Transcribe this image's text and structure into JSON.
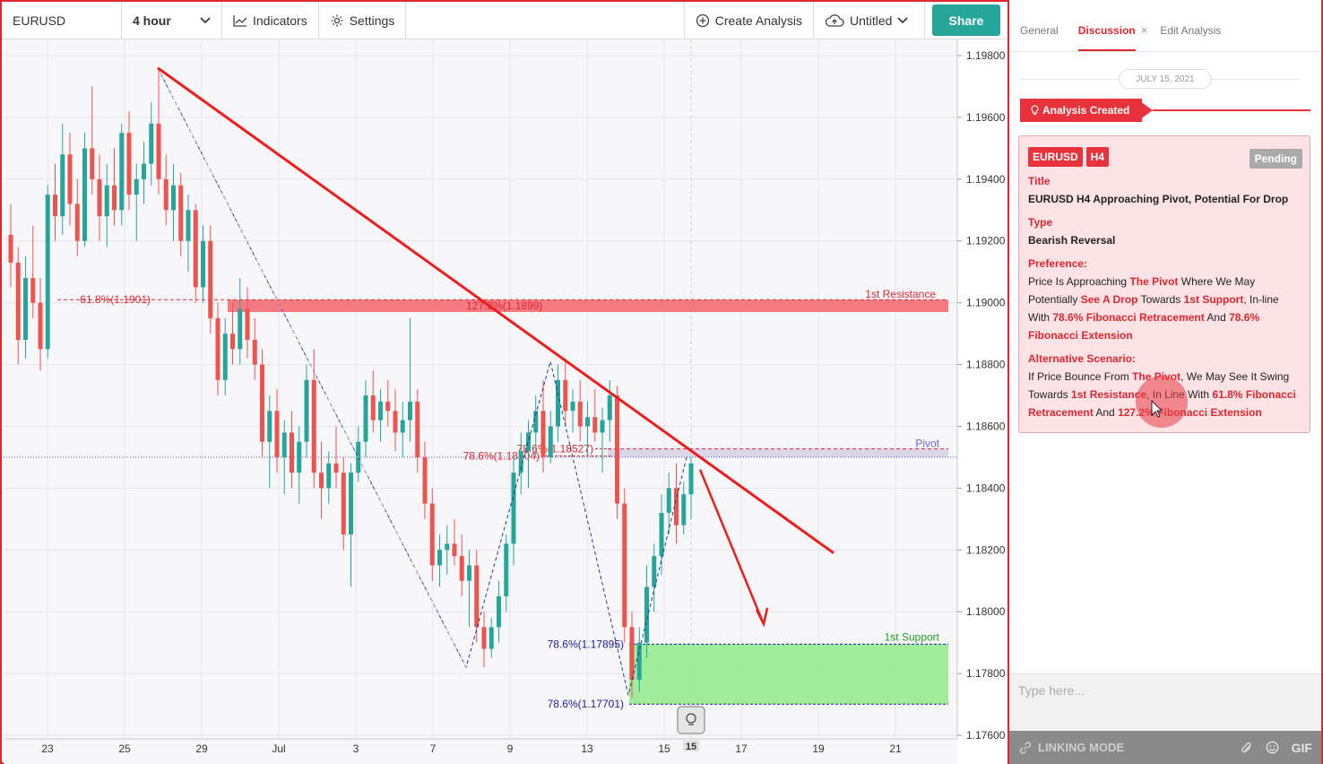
{
  "toolbar": {
    "symbol": "EURUSD",
    "timeframe": "4 hour",
    "indicators_label": "Indicators",
    "settings_label": "Settings",
    "create_analysis_label": "Create Analysis",
    "layout_name": "Untitled",
    "share_label": "Share"
  },
  "chart_data": {
    "type": "candlestick",
    "symbol": "EURUSD",
    "timeframe": "H4",
    "ylim": [
      1.176,
      1.198
    ],
    "y_ticks": [
      "1.19800",
      "1.19600",
      "1.19400",
      "1.19200",
      "1.19000",
      "1.18800",
      "1.18600",
      "1.18400",
      "1.18200",
      "1.18000",
      "1.17800",
      "1.17600"
    ],
    "x_ticks": [
      "23",
      "25",
      "29",
      "Jul",
      "3",
      "7",
      "9",
      "13",
      "15",
      "17",
      "19",
      "21"
    ],
    "x_highlight": "15",
    "levels": {
      "resistance": {
        "label": "1st Resistance",
        "value": 1.1899
      },
      "pivot": {
        "label": "Pivot",
        "value": 1.185
      },
      "support": {
        "label": "1st Support",
        "value": 1.17895
      }
    },
    "annotations": [
      "61.8%(1.1901)",
      "127.2%(1.1899)",
      "78.6%(1.18504)",
      "78.6%(1.18527)",
      "78.6%(1.17895)",
      "78.6%(1.17701)"
    ],
    "candles_ohlc": [
      [
        1.1922,
        1.1932,
        1.1905,
        1.1913
      ],
      [
        1.1913,
        1.1918,
        1.188,
        1.1888
      ],
      [
        1.1888,
        1.1915,
        1.1882,
        1.1908
      ],
      [
        1.1908,
        1.1925,
        1.1895,
        1.19
      ],
      [
        1.19,
        1.1908,
        1.1878,
        1.1885
      ],
      [
        1.1885,
        1.1938,
        1.1882,
        1.1935
      ],
      [
        1.1935,
        1.1945,
        1.192,
        1.1928
      ],
      [
        1.1928,
        1.1958,
        1.1922,
        1.1948
      ],
      [
        1.1948,
        1.1955,
        1.1925,
        1.1932
      ],
      [
        1.1932,
        1.194,
        1.1915,
        1.192
      ],
      [
        1.192,
        1.1955,
        1.1918,
        1.195
      ],
      [
        1.195,
        1.197,
        1.1935,
        1.194
      ],
      [
        1.194,
        1.1948,
        1.192,
        1.1928
      ],
      [
        1.1928,
        1.1945,
        1.1918,
        1.1938
      ],
      [
        1.1938,
        1.195,
        1.1925,
        1.193
      ],
      [
        1.193,
        1.1958,
        1.1925,
        1.1955
      ],
      [
        1.1955,
        1.1962,
        1.193,
        1.1935
      ],
      [
        1.1935,
        1.1945,
        1.192,
        1.194
      ],
      [
        1.194,
        1.1952,
        1.1932,
        1.1945
      ],
      [
        1.1945,
        1.1965,
        1.1938,
        1.1958
      ],
      [
        1.1958,
        1.1975,
        1.1935,
        1.194
      ],
      [
        1.194,
        1.1948,
        1.1925,
        1.193
      ],
      [
        1.193,
        1.1945,
        1.192,
        1.1938
      ],
      [
        1.1938,
        1.1942,
        1.1915,
        1.192
      ],
      [
        1.192,
        1.1935,
        1.191,
        1.193
      ],
      [
        1.193,
        1.1932,
        1.19,
        1.1905
      ],
      [
        1.1905,
        1.1925,
        1.19,
        1.192
      ],
      [
        1.192,
        1.1925,
        1.189,
        1.1895
      ],
      [
        1.1895,
        1.19,
        1.187,
        1.1875
      ],
      [
        1.1875,
        1.1895,
        1.187,
        1.189
      ],
      [
        1.189,
        1.19,
        1.188,
        1.1885
      ],
      [
        1.1885,
        1.1908,
        1.188,
        1.1898
      ],
      [
        1.1898,
        1.1905,
        1.1882,
        1.1888
      ],
      [
        1.1888,
        1.1895,
        1.1875,
        1.188
      ],
      [
        1.188,
        1.1885,
        1.185,
        1.1855
      ],
      [
        1.1855,
        1.187,
        1.184,
        1.1865
      ],
      [
        1.1865,
        1.1872,
        1.1845,
        1.185
      ],
      [
        1.185,
        1.1862,
        1.1838,
        1.1858
      ],
      [
        1.1858,
        1.1865,
        1.184,
        1.1845
      ],
      [
        1.1845,
        1.186,
        1.1835,
        1.1855
      ],
      [
        1.1855,
        1.188,
        1.185,
        1.1875
      ],
      [
        1.1875,
        1.1885,
        1.184,
        1.1845
      ],
      [
        1.1845,
        1.1855,
        1.183,
        1.184
      ],
      [
        1.184,
        1.1852,
        1.1835,
        1.1848
      ],
      [
        1.1848,
        1.186,
        1.184,
        1.1845
      ],
      [
        1.1845,
        1.185,
        1.182,
        1.1825
      ],
      [
        1.1825,
        1.1848,
        1.1808,
        1.1845
      ],
      [
        1.1845,
        1.186,
        1.1842,
        1.1855
      ],
      [
        1.1855,
        1.1875,
        1.185,
        1.187
      ],
      [
        1.187,
        1.1878,
        1.1858,
        1.1862
      ],
      [
        1.1862,
        1.1872,
        1.1855,
        1.1868
      ],
      [
        1.1868,
        1.1875,
        1.186,
        1.1865
      ],
      [
        1.1865,
        1.1872,
        1.1852,
        1.1858
      ],
      [
        1.1858,
        1.1868,
        1.185,
        1.1862
      ],
      [
        1.1862,
        1.1895,
        1.1855,
        1.1868
      ],
      [
        1.1868,
        1.1872,
        1.1845,
        1.185
      ],
      [
        1.185,
        1.1855,
        1.183,
        1.1835
      ],
      [
        1.1835,
        1.184,
        1.181,
        1.1815
      ],
      [
        1.1815,
        1.1825,
        1.1808,
        1.182
      ],
      [
        1.182,
        1.1828,
        1.1812,
        1.1822
      ],
      [
        1.1822,
        1.183,
        1.1815,
        1.1818
      ],
      [
        1.1818,
        1.1825,
        1.1805,
        1.181
      ],
      [
        1.181,
        1.182,
        1.1795,
        1.1815
      ],
      [
        1.1815,
        1.182,
        1.179,
        1.1795
      ],
      [
        1.1795,
        1.18,
        1.1782,
        1.1788
      ],
      [
        1.1788,
        1.1798,
        1.1785,
        1.1795
      ],
      [
        1.1795,
        1.181,
        1.179,
        1.1805
      ],
      [
        1.1805,
        1.1825,
        1.18,
        1.1822
      ],
      [
        1.1822,
        1.185,
        1.1815,
        1.1845
      ],
      [
        1.1845,
        1.1858,
        1.1838,
        1.1852
      ],
      [
        1.1852,
        1.1862,
        1.184,
        1.1858
      ],
      [
        1.1858,
        1.187,
        1.185,
        1.1865
      ],
      [
        1.1865,
        1.1875,
        1.1845,
        1.185
      ],
      [
        1.185,
        1.1865,
        1.1848,
        1.186
      ],
      [
        1.186,
        1.188,
        1.1855,
        1.1875
      ],
      [
        1.1875,
        1.1882,
        1.186,
        1.1865
      ],
      [
        1.1865,
        1.1872,
        1.1858,
        1.1868
      ],
      [
        1.1868,
        1.1875,
        1.1855,
        1.186
      ],
      [
        1.186,
        1.1868,
        1.185,
        1.1863
      ],
      [
        1.1863,
        1.1872,
        1.1855,
        1.1858
      ],
      [
        1.1858,
        1.1866,
        1.1845,
        1.1862
      ],
      [
        1.1862,
        1.1875,
        1.1855,
        1.187
      ],
      [
        1.187,
        1.1873,
        1.183,
        1.1835
      ],
      [
        1.1835,
        1.184,
        1.179,
        1.1795
      ],
      [
        1.1795,
        1.18,
        1.1772,
        1.1778
      ],
      [
        1.1778,
        1.1795,
        1.1774,
        1.179
      ],
      [
        1.179,
        1.1815,
        1.1785,
        1.1808
      ],
      [
        1.1808,
        1.1822,
        1.18,
        1.1818
      ],
      [
        1.1818,
        1.1838,
        1.1812,
        1.1832
      ],
      [
        1.1832,
        1.1845,
        1.1825,
        1.184
      ],
      [
        1.184,
        1.1848,
        1.1822,
        1.1828
      ],
      [
        1.1828,
        1.1842,
        1.1825,
        1.1838
      ],
      [
        1.1838,
        1.185,
        1.183,
        1.1848
      ]
    ]
  },
  "panel": {
    "tabs": [
      "General",
      "Discussion",
      "Edit Analysis"
    ],
    "close_icon": "×",
    "date": "JULY 15, 2021",
    "created_label": "Analysis Created",
    "card": {
      "symbol": "EURUSD",
      "timeframe": "H4",
      "status": "Pending",
      "title_label": "Title",
      "title": "EURUSD H4 Approaching Pivot, Potential For Drop",
      "type_label": "Type",
      "type": "Bearish Reversal",
      "pref_label": "Preference:",
      "pref_1": "Price Is Approaching ",
      "pref_2": "The Pivot",
      "pref_3": " Where We May Potentially ",
      "pref_4": "See A Drop",
      "pref_5": " Towards ",
      "pref_6": "1st Support",
      "pref_7": ", In-line With ",
      "pref_8": "78.6% Fibonacci Retracement",
      "pref_9": " And ",
      "pref_10": "78.6% Fibonacci Extension",
      "alt_label": "Alternative Scenario:",
      "alt_1": "If Price Bounce From ",
      "alt_2": "The Pivot",
      "alt_3": ", We May See It Swing Towards ",
      "alt_4": "1st Resistance",
      "alt_5": ", In Line With ",
      "alt_6": "61.8% Fibonacci Retracement",
      "alt_7": " And ",
      "alt_8": "127.2% Fibonacci Extension"
    },
    "input_placeholder": "Type here...",
    "footer_label": "LINKING MODE",
    "gif_label": "GIF"
  }
}
